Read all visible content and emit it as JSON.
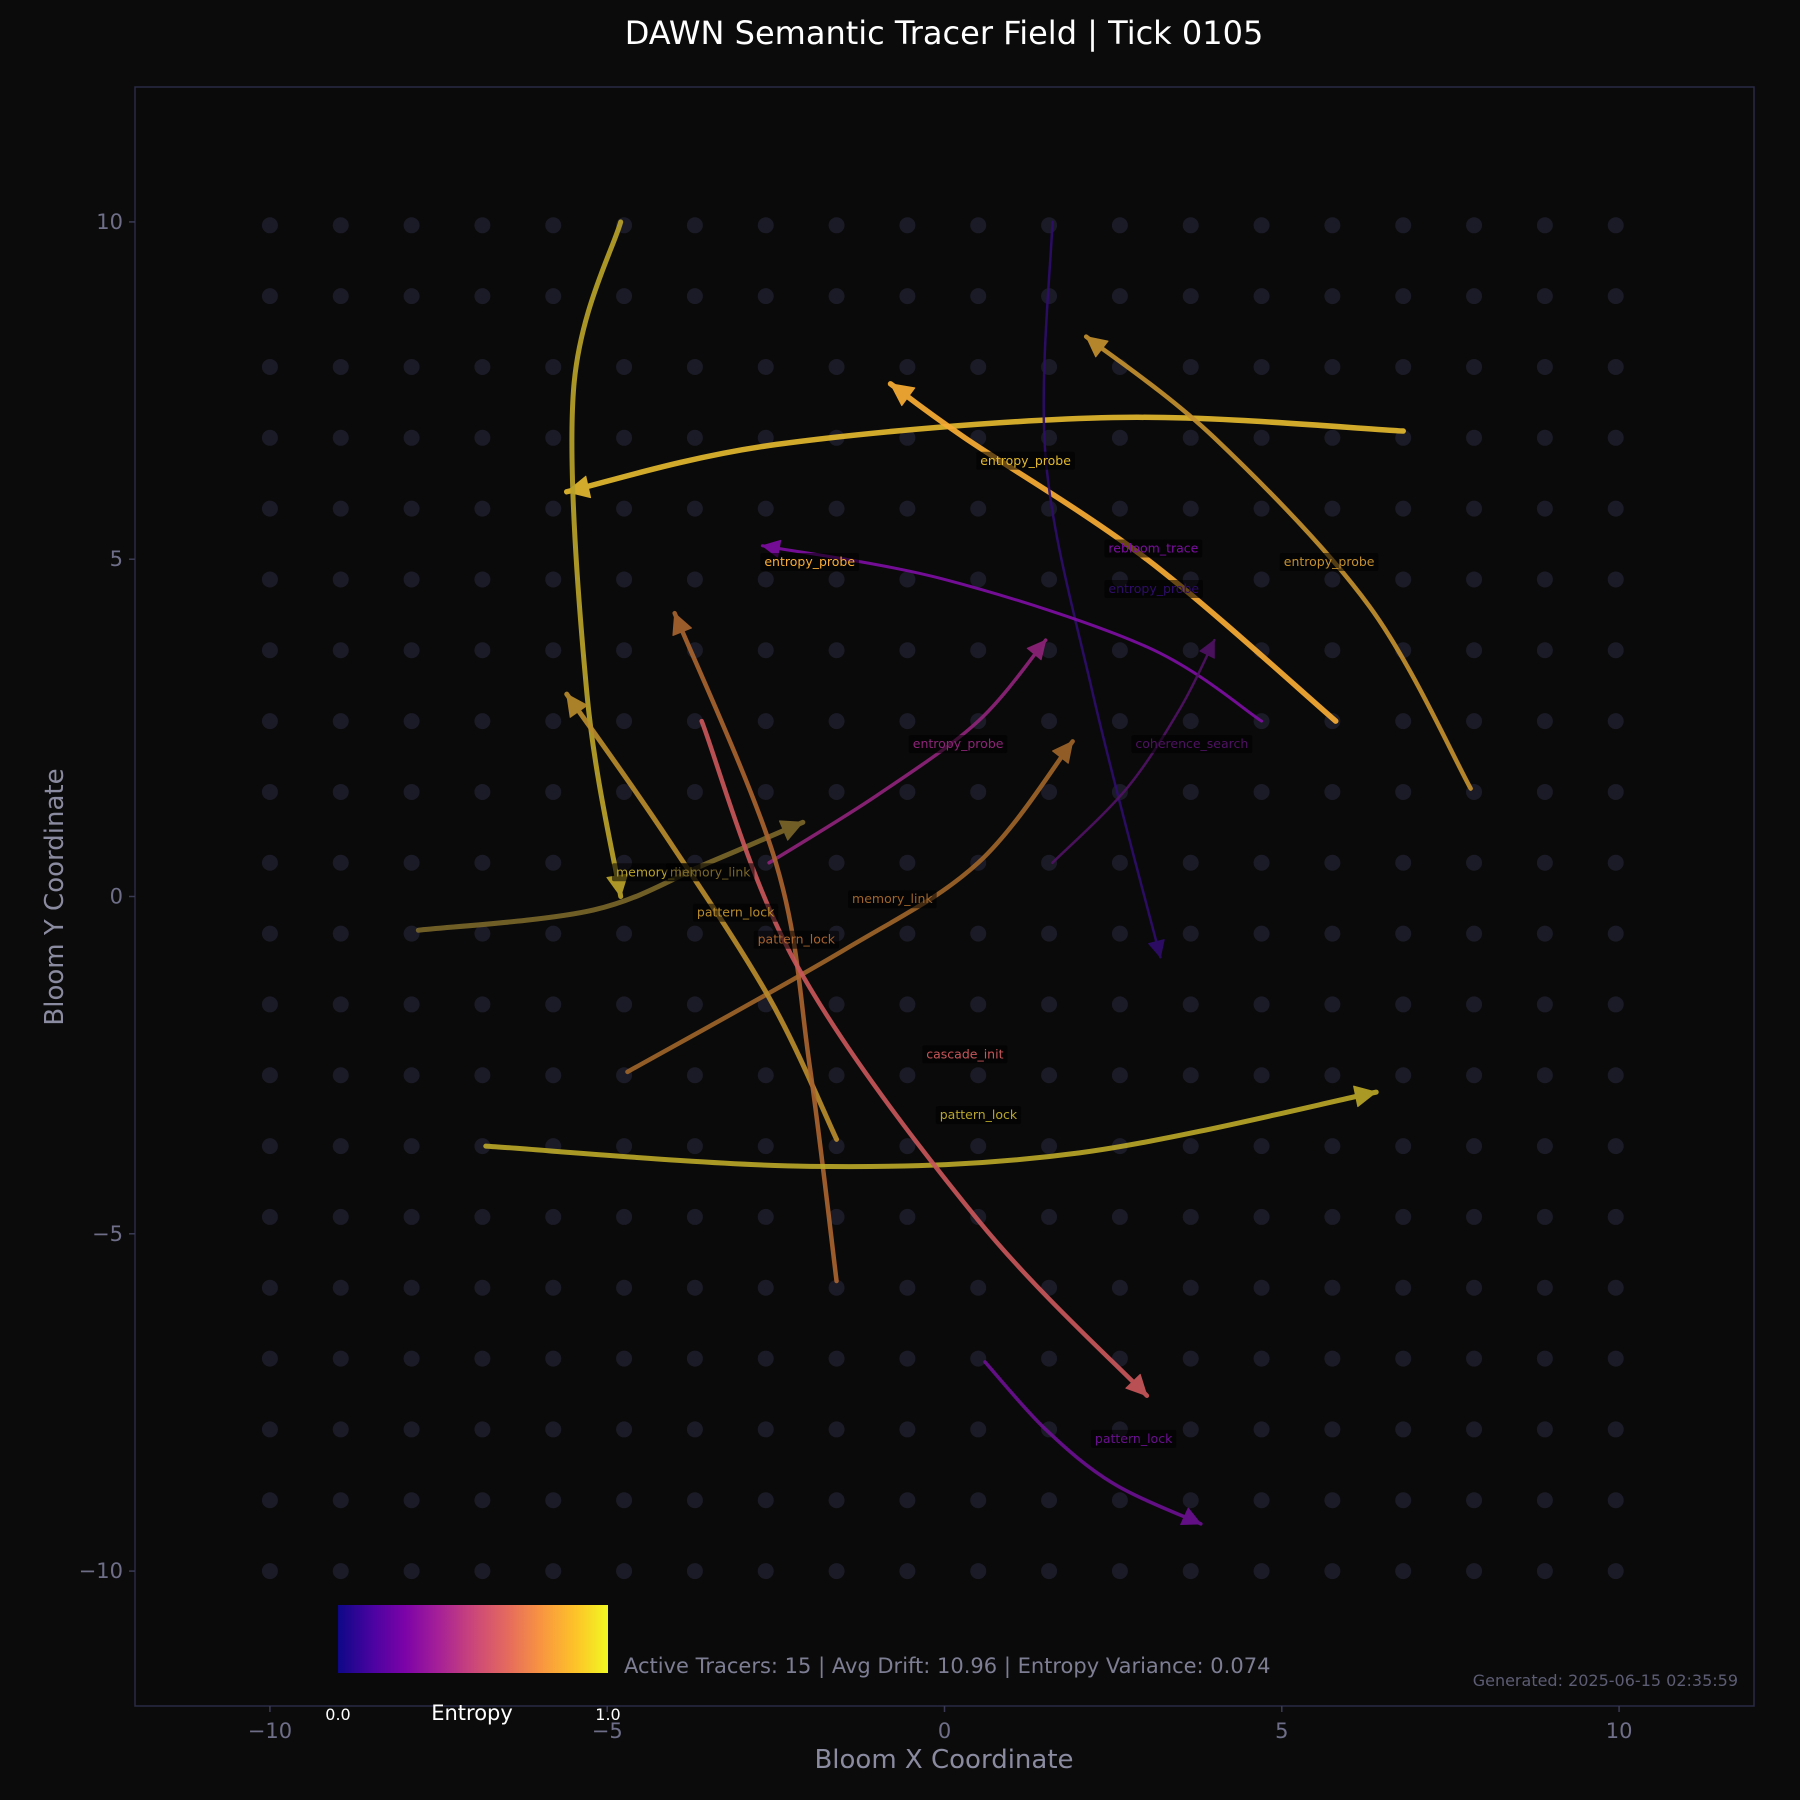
{
  "chart_data": {
    "type": "line",
    "title": "DAWN Semantic Tracer Field | Tick 0105",
    "xlabel": "Bloom X Coordinate",
    "ylabel": "Bloom Y Coordinate",
    "xlim": [
      -12,
      12
    ],
    "ylim": [
      -12,
      12
    ],
    "xticks": [
      -10,
      -5,
      0,
      5,
      10
    ],
    "yticks": [
      -10,
      -5,
      0,
      5,
      10
    ],
    "xtick_labels": [
      "−10",
      "−5",
      "0",
      "5",
      "10"
    ],
    "ytick_labels": [
      "−10",
      "−5",
      "0",
      "5",
      "10"
    ],
    "grid": "dots",
    "grid_step": 1.05,
    "colormap": "plasma",
    "colorbar": {
      "label": "Entropy",
      "min_label": "0.0",
      "max_label": "1.0",
      "placement": "bottom-left"
    },
    "stats_text": "Active Tracers: 15 | Avg Drift: 10.96 | Entropy Variance: 0.074",
    "generated_text": "Generated: 2025-06-15 02:35:59",
    "tracers": [
      {
        "label": "entropy_probe",
        "color": "#e3b92f",
        "width": 5.5,
        "path": [
          [
            6.8,
            6.9
          ],
          [
            2.5,
            7.1
          ],
          [
            -2.5,
            6.7
          ],
          [
            -5.6,
            6.0
          ]
        ],
        "label_at": [
          0.5,
          6.4
        ]
      },
      {
        "label": "entropy_probe",
        "color": "#f9ad34",
        "width": 5.5,
        "path": [
          [
            5.8,
            2.6
          ],
          [
            3.0,
            5.0
          ],
          [
            0.3,
            6.8
          ],
          [
            -0.8,
            7.6
          ]
        ],
        "label_at": [
          -2.7,
          4.9
        ]
      },
      {
        "label": "entropy_probe",
        "color": "#c4902f",
        "width": 4.5,
        "path": [
          [
            7.8,
            1.6
          ],
          [
            6.3,
            4.3
          ],
          [
            4.0,
            6.8
          ],
          [
            2.1,
            8.3
          ]
        ],
        "label_at": [
          5.0,
          4.9
        ]
      },
      {
        "label": "entropy_probe",
        "color": "#2e0d6a",
        "width": 2.5,
        "path": [
          [
            1.6,
            10.0
          ],
          [
            1.5,
            6.5
          ],
          [
            2.2,
            3.0
          ],
          [
            3.2,
            -0.9
          ]
        ],
        "label_at": [
          2.4,
          4.5
        ]
      },
      {
        "label": "entropy_probe",
        "color": "#8e2479",
        "width": 3.5,
        "path": [
          [
            -2.6,
            0.5
          ],
          [
            -1.0,
            1.5
          ],
          [
            0.5,
            2.6
          ],
          [
            1.5,
            3.8
          ]
        ],
        "label_at": [
          -0.5,
          2.2
        ]
      },
      {
        "label": "rebloom_trace",
        "color": "#7d0ea2",
        "width": 3.0,
        "path": [
          [
            4.7,
            2.6
          ],
          [
            3.0,
            3.7
          ],
          [
            0.0,
            4.7
          ],
          [
            -2.7,
            5.2
          ]
        ],
        "label_at": [
          2.4,
          5.1
        ]
      },
      {
        "label": "memory_link",
        "color": "#b9a22a",
        "width": 5.0,
        "path": [
          [
            -4.8,
            10.0
          ],
          [
            -5.5,
            7.5
          ],
          [
            -5.3,
            3.0
          ],
          [
            -4.8,
            0.0
          ]
        ],
        "label_at": [
          -4.9,
          0.3
        ]
      },
      {
        "label": "memory_link",
        "color": "#9e6429",
        "width": 4.5,
        "path": [
          [
            -4.7,
            -2.6
          ],
          [
            -1.5,
            -0.8
          ],
          [
            0.5,
            0.5
          ],
          [
            1.9,
            2.3
          ]
        ],
        "label_at": [
          -1.4,
          -0.1
        ]
      },
      {
        "label": "memory_link",
        "color": "#7a662a",
        "width": 5.0,
        "path": [
          [
            -7.8,
            -0.5
          ],
          [
            -5.2,
            -0.2
          ],
          [
            -3.5,
            0.5
          ],
          [
            -2.1,
            1.1
          ]
        ],
        "label_at": [
          -4.1,
          0.3
        ]
      },
      {
        "label": "coherence_search",
        "color": "#4f1263",
        "width": 2.5,
        "path": [
          [
            1.6,
            0.5
          ],
          [
            2.7,
            1.6
          ],
          [
            3.5,
            2.8
          ],
          [
            4.0,
            3.8
          ]
        ],
        "label_at": [
          2.8,
          2.2
        ]
      },
      {
        "label": "pattern_lock",
        "color": "#b88b2b",
        "width": 5.0,
        "path": [
          [
            -1.6,
            -3.6
          ],
          [
            -2.6,
            -1.5
          ],
          [
            -4.2,
            1.0
          ],
          [
            -5.6,
            3.0
          ]
        ],
        "label_at": [
          -3.7,
          -0.3
        ]
      },
      {
        "label": "pattern_lock",
        "color": "#a8632f",
        "width": 4.5,
        "path": [
          [
            -1.6,
            -5.7
          ],
          [
            -2.0,
            -2.5
          ],
          [
            -2.5,
            0.5
          ],
          [
            -4.0,
            4.2
          ]
        ],
        "label_at": [
          -2.8,
          -0.7
        ]
      },
      {
        "label": "pattern_lock",
        "color": "#b9a628",
        "width": 5.0,
        "path": [
          [
            -6.8,
            -3.7
          ],
          [
            -2.0,
            -4.0
          ],
          [
            2.0,
            -3.8
          ],
          [
            6.4,
            -2.9
          ]
        ],
        "label_at": [
          -0.1,
          -3.3
        ]
      },
      {
        "label": "pattern_lock",
        "color": "#6a0f8f",
        "width": 3.5,
        "path": [
          [
            0.6,
            -6.9
          ],
          [
            1.5,
            -7.9
          ],
          [
            2.5,
            -8.7
          ],
          [
            3.8,
            -9.3
          ]
        ],
        "label_at": [
          2.2,
          -8.1
        ]
      },
      {
        "label": "cascade_init",
        "color": "#c8565a",
        "width": 4.5,
        "path": [
          [
            -3.6,
            2.6
          ],
          [
            -2.2,
            -1.0
          ],
          [
            0.5,
            -4.8
          ],
          [
            3.0,
            -7.4
          ]
        ],
        "label_at": [
          -0.3,
          -2.4
        ]
      }
    ]
  }
}
